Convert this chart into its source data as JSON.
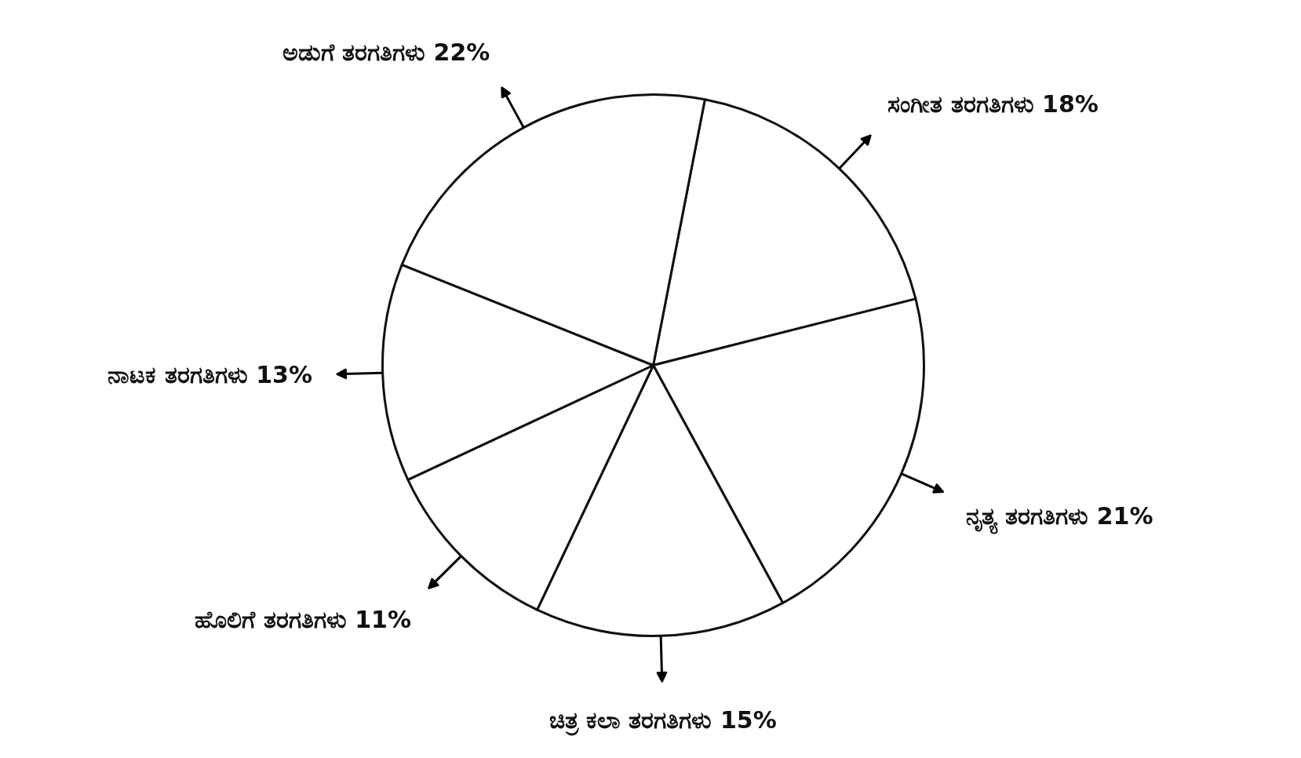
{
  "chart_data": {
    "type": "pie",
    "categories": [
      "ಸಂಗೀತ ತರಗತಿಗಳು",
      "ನೃತ್ಯ ತರಗತಿಗಳು",
      "ಚಿತ್ರ ಕಲಾ ತರಗತಿಗಳು",
      "ಹೊಲಿಗೆ ತರಗತಿಗಳು",
      "ನಾಟಕ ತರಗತಿಗಳು",
      "ಅಡುಗೆ ತರಗತಿಗಳು"
    ],
    "values": [
      18,
      21,
      15,
      11,
      13,
      22
    ],
    "value_labels": [
      "18%",
      "21%",
      "15%",
      "11%",
      "13%",
      "22%"
    ],
    "colors": [
      "#ffffff",
      "#ffffff",
      "#ffffff",
      "#ffffff",
      "#ffffff",
      "#ffffff"
    ]
  }
}
